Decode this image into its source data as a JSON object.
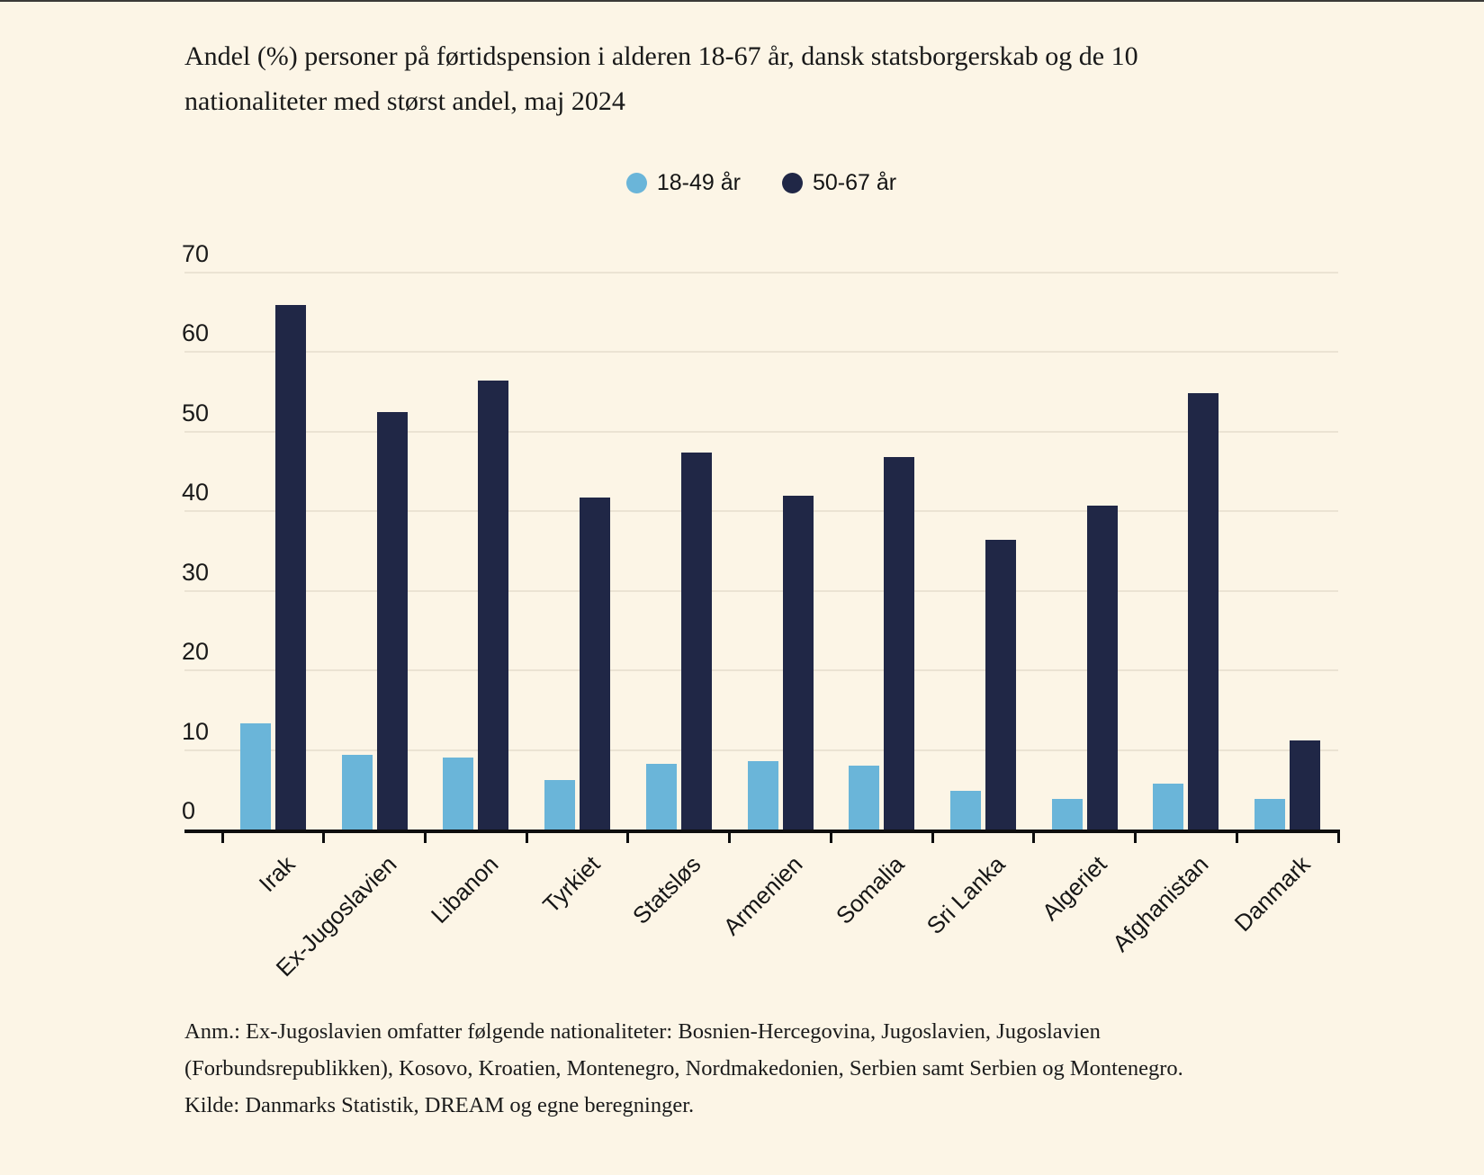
{
  "page": {
    "background_color": "#fcf5e6",
    "top_border_color": "#3a3a38"
  },
  "title": {
    "text": "Andel (%) personer på førtidspension i alderen 18-67 år, dansk statsborgerskab og de 10 nationaliteter med størst andel, maj 2024"
  },
  "legend": {
    "items": [
      {
        "label": "18-49 år",
        "color": "#6ab5d9"
      },
      {
        "label": "50-67 år",
        "color": "#202746"
      }
    ]
  },
  "chart_data": {
    "type": "bar",
    "title": "Andel (%) personer på førtidspension i alderen 18-67 år, dansk statsborgerskab og de 10 nationaliteter med størst andel, maj 2024",
    "categories": [
      "Irak",
      "Ex-Jugoslavien",
      "Libanon",
      "Tyrkiet",
      "Statsløs",
      "Armenien",
      "Somalia",
      "Sri Lanka",
      "Algeriet",
      "Afghanistan",
      "Danmark"
    ],
    "series": [
      {
        "name": "18-49 år",
        "color": "#6ab5d9",
        "values": [
          13.3,
          9.4,
          9.1,
          6.2,
          8.3,
          8.6,
          8.0,
          4.9,
          3.8,
          5.8,
          3.9
        ]
      },
      {
        "name": "50-67 år",
        "color": "#202746",
        "values": [
          65.9,
          52.5,
          56.4,
          41.7,
          47.4,
          42.0,
          46.8,
          36.4,
          40.7,
          54.8,
          11.2
        ]
      }
    ],
    "xlabel": "",
    "ylabel": "",
    "ylim": [
      0,
      70
    ],
    "yticks": [
      0,
      10,
      20,
      30,
      40,
      50,
      60,
      70
    ],
    "grid": true,
    "gridline_color": "#ebe3d3",
    "axis_color": "#0e0e0e",
    "legend_position": "top-center",
    "x_label_rotation_deg": -45
  },
  "footnote": {
    "lines": [
      "Anm.: Ex-Jugoslavien omfatter følgende nationaliteter: Bosnien-Hercegovina, Jugoslavien, Jugoslavien",
      "(Forbundsrepublikken), Kosovo, Kroatien, Montenegro, Nordmakedonien, Serbien samt Serbien og Montenegro.",
      "Kilde: Danmarks Statistik, DREAM og egne beregninger."
    ]
  }
}
